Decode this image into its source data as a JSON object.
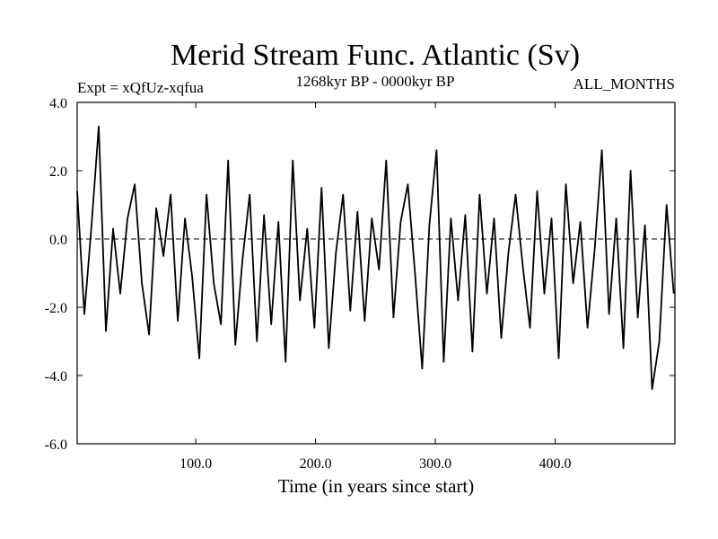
{
  "chart_data": {
    "type": "line",
    "title": "Merid Stream Func. Atlantic (Sv)",
    "subtitle_left": "Expt = xQfUz-xqfua",
    "subtitle_center": "1268kyr BP - 0000kyr BP",
    "subtitle_right": "ALL_MONTHS",
    "xlabel": "Time (in years since start)",
    "ylabel": "",
    "xlim": [
      1,
      500
    ],
    "ylim": [
      -6.0,
      4.0
    ],
    "x_ticks": [
      100,
      200,
      300,
      400
    ],
    "x_tick_labels": [
      "100.0",
      "200.0",
      "300.0",
      "400.0"
    ],
    "y_ticks": [
      -6,
      -4,
      -2,
      0,
      2,
      4
    ],
    "y_tick_labels": [
      "-6.0",
      "-4.0",
      "-2.0",
      "0.0",
      "2.0",
      "4.0"
    ],
    "zero_line": 0.0,
    "series": [
      {
        "name": "Merid Stream Func. Atlantic",
        "color": "#000000",
        "x": [
          1,
          7,
          13,
          19,
          25,
          31,
          37,
          43,
          49,
          55,
          61,
          67,
          73,
          79,
          85,
          91,
          97,
          103,
          109,
          115,
          121,
          127,
          133,
          139,
          145,
          151,
          157,
          163,
          169,
          175,
          181,
          187,
          193,
          199,
          205,
          211,
          217,
          223,
          229,
          235,
          241,
          247,
          253,
          259,
          265,
          271,
          277,
          283,
          289,
          295,
          301,
          307,
          313,
          319,
          325,
          331,
          337,
          343,
          349,
          355,
          361,
          367,
          373,
          379,
          385,
          391,
          397,
          403,
          409,
          415,
          421,
          427,
          433,
          439,
          445,
          451,
          457,
          463,
          469,
          475,
          481,
          487,
          493,
          499
        ],
        "values": [
          1.4,
          -2.2,
          0.4,
          3.3,
          -2.7,
          0.3,
          -1.6,
          0.6,
          1.6,
          -1.3,
          -2.8,
          0.9,
          -0.5,
          1.3,
          -2.4,
          0.6,
          -1.1,
          -3.5,
          1.3,
          -1.3,
          -2.5,
          2.3,
          -3.1,
          -0.6,
          1.3,
          -3.0,
          0.7,
          -2.5,
          0.5,
          -3.6,
          2.3,
          -1.8,
          0.3,
          -2.6,
          1.5,
          -3.2,
          -0.4,
          1.3,
          -2.1,
          0.8,
          -2.4,
          0.6,
          -0.9,
          2.3,
          -2.3,
          0.5,
          1.6,
          -1.0,
          -3.8,
          0.4,
          2.6,
          -3.6,
          0.6,
          -1.8,
          0.7,
          -3.3,
          1.3,
          -1.6,
          0.6,
          -2.9,
          -0.4,
          1.3,
          -0.8,
          -2.6,
          1.4,
          -1.6,
          0.6,
          -3.5,
          1.6,
          -1.3,
          0.5,
          -2.6,
          -0.3,
          2.6,
          -2.2,
          0.6,
          -3.2,
          2.0,
          -2.3,
          0.4,
          -4.4,
          -3.0,
          1.0,
          -1.6
        ]
      }
    ]
  }
}
